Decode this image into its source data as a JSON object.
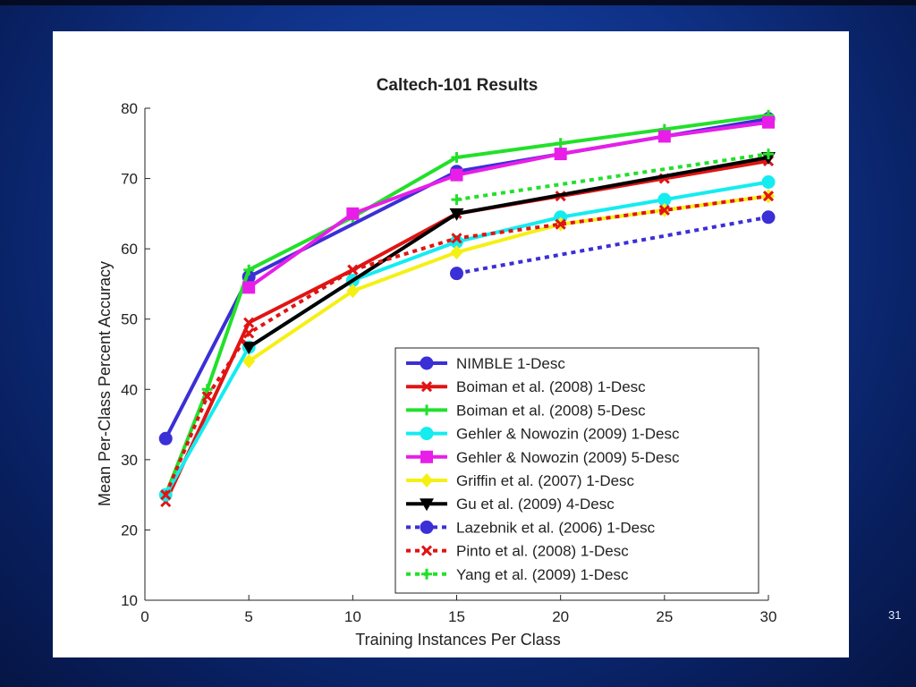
{
  "slide": {
    "page_number": "31"
  },
  "colors": {
    "background": "#0f3288",
    "panel": "#ffffff"
  },
  "chart_data": {
    "type": "line",
    "title": "Caltech-101 Results",
    "xlabel": "Training Instances Per Class",
    "ylabel": "Mean Per-Class Percent Accuracy",
    "xlim": [
      0,
      30
    ],
    "ylim": [
      10,
      80
    ],
    "xticks": [
      0,
      5,
      10,
      15,
      20,
      25,
      30
    ],
    "yticks": [
      10,
      20,
      30,
      40,
      50,
      60,
      70,
      80
    ],
    "grid": false,
    "legend_position": "bottom-right",
    "series": [
      {
        "name": "NIMBLE 1-Desc",
        "color": "#3b2fd6",
        "dash": "solid",
        "marker": "circle",
        "x": [
          1,
          5,
          15,
          30
        ],
        "y": [
          33,
          56,
          71,
          78.5
        ]
      },
      {
        "name": "Boiman et al. (2008) 1-Desc",
        "color": "#e01414",
        "dash": "solid",
        "marker": "x",
        "x": [
          1,
          5,
          10,
          15,
          20,
          25,
          30
        ],
        "y": [
          24,
          49.5,
          57,
          65,
          67.5,
          70,
          72.5
        ]
      },
      {
        "name": "Boiman et al. (2008) 5-Desc",
        "color": "#22e02a",
        "dash": "solid",
        "marker": "plus",
        "x": [
          1,
          3,
          5,
          10,
          15,
          20,
          25,
          30
        ],
        "y": [
          25,
          40,
          57,
          64.5,
          73,
          75,
          77,
          79
        ]
      },
      {
        "name": "Gehler & Nowozin (2009) 1-Desc",
        "color": "#14ecf0",
        "dash": "solid",
        "marker": "circle",
        "x": [
          1,
          5,
          10,
          15,
          20,
          25,
          30
        ],
        "y": [
          25,
          46,
          55.5,
          61,
          64.5,
          67,
          69.5
        ]
      },
      {
        "name": "Gehler & Nowozin (2009) 5-Desc",
        "color": "#e81ee8",
        "dash": "solid",
        "marker": "square",
        "x": [
          5,
          10,
          15,
          20,
          25,
          30
        ],
        "y": [
          54.5,
          65,
          70.5,
          73.5,
          76,
          78
        ]
      },
      {
        "name": "Griffin et al. (2007) 1-Desc",
        "color": "#f5f014",
        "dash": "solid",
        "marker": "diamond",
        "x": [
          5,
          10,
          15,
          20,
          25,
          30
        ],
        "y": [
          44,
          54,
          59.5,
          63.5,
          65.5,
          67.5
        ]
      },
      {
        "name": "Gu et al. (2009) 4-Desc",
        "color": "#000000",
        "dash": "solid",
        "marker": "triangle-down",
        "x": [
          5,
          15,
          30
        ],
        "y": [
          46,
          65,
          73
        ]
      },
      {
        "name": "Lazebnik et al. (2006) 1-Desc",
        "color": "#3b2fd6",
        "dash": "dotted",
        "marker": "circle",
        "x": [
          15,
          30
        ],
        "y": [
          56.5,
          64.5
        ]
      },
      {
        "name": "Pinto et al. (2008) 1-Desc",
        "color": "#e01414",
        "dash": "dotted",
        "marker": "x",
        "x": [
          1,
          3,
          5,
          10,
          15,
          20,
          25,
          30
        ],
        "y": [
          25,
          39,
          48,
          57,
          61.5,
          63.5,
          65.5,
          67.5
        ]
      },
      {
        "name": "Yang et al. (2009) 1-Desc",
        "color": "#22e02a",
        "dash": "dotted",
        "marker": "plus",
        "x": [
          15,
          30
        ],
        "y": [
          67,
          73.5
        ]
      }
    ]
  }
}
